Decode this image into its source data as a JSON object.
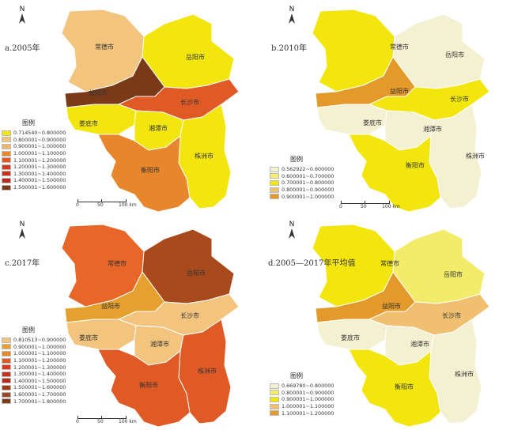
{
  "panels": [
    {
      "id": "a",
      "title": "a.2005年",
      "legend_title": "图例",
      "legend": [
        {
          "label": "0.714540~0.800000",
          "color": "#f2e60e"
        },
        {
          "label": "0.800001~0.900000",
          "color": "#f2c47e"
        },
        {
          "label": "0.900001~1.000000",
          "color": "#f0b46a"
        },
        {
          "label": "1.000001~1.100000",
          "color": "#e8862c"
        },
        {
          "label": "1.100001~1.200000",
          "color": "#e05a26"
        },
        {
          "label": "1.200001~1.300000",
          "color": "#d73b1e"
        },
        {
          "label": "1.300001~1.400000",
          "color": "#c9301c"
        },
        {
          "label": "1.400001~1.500000",
          "color": "#b52d1a"
        },
        {
          "label": "1.500001~1.600000",
          "color": "#7a3a18"
        }
      ],
      "regions": {
        "changde": {
          "name": "常德市",
          "color": "#f2c47e"
        },
        "yueyang": {
          "name": "岳阳市",
          "color": "#f2e60e"
        },
        "yiyang": {
          "name": "益阳市",
          "color": "#7a3a18"
        },
        "changsha": {
          "name": "长沙市",
          "color": "#e05a26"
        },
        "loudi": {
          "name": "娄底市",
          "color": "#f2e60e"
        },
        "xiangtan": {
          "name": "湘潭市",
          "color": "#f2e60e"
        },
        "zhuzhou": {
          "name": "株洲市",
          "color": "#f2e60e"
        },
        "hengyang": {
          "name": "衡阳市",
          "color": "#e8862c"
        }
      },
      "scale_labels": [
        "0",
        "50",
        "100 km"
      ]
    },
    {
      "id": "b",
      "title": "b.2010年",
      "legend_title": "图例",
      "legend": [
        {
          "label": "0.562922~0.600000",
          "color": "#f4f1d2"
        },
        {
          "label": "0.600001~0.700000",
          "color": "#f2ec6a"
        },
        {
          "label": "0.700001~0.800000",
          "color": "#f2e60e"
        },
        {
          "label": "0.800001~0.900000",
          "color": "#f0c070"
        },
        {
          "label": "0.900001~1.000000",
          "color": "#e39a2a"
        }
      ],
      "regions": {
        "changde": {
          "name": "常德市",
          "color": "#f2e60e"
        },
        "yueyang": {
          "name": "岳阳市",
          "color": "#f4f1d2"
        },
        "yiyang": {
          "name": "益阳市",
          "color": "#e39a2a"
        },
        "changsha": {
          "name": "长沙市",
          "color": "#f2e60e"
        },
        "loudi": {
          "name": "娄底市",
          "color": "#f4f1d2"
        },
        "xiangtan": {
          "name": "湘潭市",
          "color": "#f4f1d2"
        },
        "zhuzhou": {
          "name": "株洲市",
          "color": "#f4f1d2"
        },
        "hengyang": {
          "name": "衡阳市",
          "color": "#f2e60e"
        }
      },
      "scale_labels": [
        "0",
        "50",
        "100 km"
      ]
    },
    {
      "id": "c",
      "title": "c.2017年",
      "legend_title": "图例",
      "legend": [
        {
          "label": "0.810513~0.900000",
          "color": "#f2c47e"
        },
        {
          "label": "0.900001~1.000000",
          "color": "#e6a030"
        },
        {
          "label": "1.000001~1.100000",
          "color": "#e8862c"
        },
        {
          "label": "1.100001~1.200000",
          "color": "#e05a26"
        },
        {
          "label": "1.200001~1.300000",
          "color": "#d73b1e"
        },
        {
          "label": "1.300001~1.400000",
          "color": "#c9301c"
        },
        {
          "label": "1.400001~1.500000",
          "color": "#b52d1a"
        },
        {
          "label": "1.500001~1.600000",
          "color": "#a33a1a"
        },
        {
          "label": "1.600001~1.700000",
          "color": "#9a4a28"
        },
        {
          "label": "1.700001~1.800000",
          "color": "#7a3a18"
        }
      ],
      "regions": {
        "changde": {
          "name": "常德市",
          "color": "#e86628"
        },
        "yueyang": {
          "name": "岳阳市",
          "color": "#a84a1c"
        },
        "yiyang": {
          "name": "益阳市",
          "color": "#e6a030"
        },
        "changsha": {
          "name": "长沙市",
          "color": "#f2c47e"
        },
        "loudi": {
          "name": "娄底市",
          "color": "#f2c47e"
        },
        "xiangtan": {
          "name": "湘潭市",
          "color": "#f2c47e"
        },
        "zhuzhou": {
          "name": "株洲市",
          "color": "#e05a26"
        },
        "hengyang": {
          "name": "衡阳市",
          "color": "#e05a26"
        }
      },
      "scale_labels": [
        "0",
        "50",
        "100 km"
      ]
    },
    {
      "id": "d",
      "title": "d.2005—2017年平均值",
      "legend_title": "图例",
      "legend": [
        {
          "label": "0.669780~0.800000",
          "color": "#f4f1d2"
        },
        {
          "label": "0.800001~0.900000",
          "color": "#f2ec6a"
        },
        {
          "label": "0.900001~1.000000",
          "color": "#f2e60e"
        },
        {
          "label": "1.000001~1.100000",
          "color": "#f0c070"
        },
        {
          "label": "1.100001~1.200000",
          "color": "#e39a2a"
        }
      ],
      "regions": {
        "changde": {
          "name": "常德市",
          "color": "#f2e60e"
        },
        "yueyang": {
          "name": "岳阳市",
          "color": "#f2ec6a"
        },
        "yiyang": {
          "name": "益阳市",
          "color": "#e39a2a"
        },
        "changsha": {
          "name": "长沙市",
          "color": "#f0c070"
        },
        "loudi": {
          "name": "娄底市",
          "color": "#f4f1d2"
        },
        "xiangtan": {
          "name": "湘潭市",
          "color": "#f4f1d2"
        },
        "zhuzhou": {
          "name": "株洲市",
          "color": "#f4f1d2"
        },
        "hengyang": {
          "name": "衡阳市",
          "color": "#f2e60e"
        }
      },
      "scale_labels": [
        "0",
        "50",
        "100 km"
      ]
    }
  ]
}
